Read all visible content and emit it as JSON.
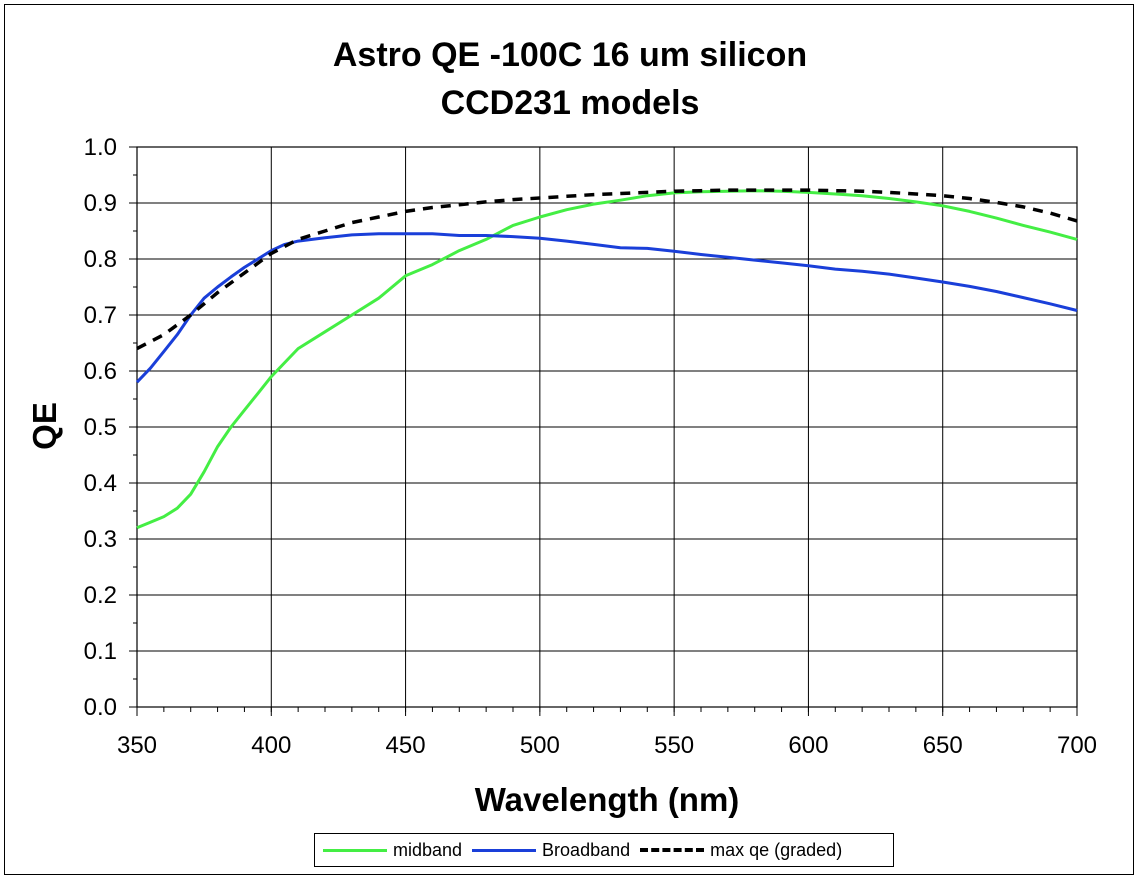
{
  "chart_data": {
    "type": "line",
    "title": [
      "Astro QE -100C 16 um silicon",
      "CCD231 models"
    ],
    "xlabel": "Wavelength (nm)",
    "ylabel": "QE",
    "xlim": [
      350,
      700
    ],
    "ylim": [
      0,
      1.0
    ],
    "x_ticks": [
      350,
      400,
      450,
      500,
      550,
      600,
      650,
      700
    ],
    "x_tick_labels": [
      "350",
      "400",
      "450",
      "500",
      "550",
      "600",
      "650",
      "700"
    ],
    "y_ticks": [
      0,
      0.1,
      0.2,
      0.3,
      0.4,
      0.5,
      0.6,
      0.7,
      0.8,
      0.9,
      1.0
    ],
    "y_tick_labels": [
      "0.0",
      "0.1",
      "0.2",
      "0.3",
      "0.4",
      "0.5",
      "0.6",
      "0.7",
      "0.8",
      "0.9",
      "1.0"
    ],
    "grid": true,
    "legend_position": "bottom",
    "series": [
      {
        "name": "midband",
        "color": "#44ee44",
        "style": "solid",
        "x": [
          350,
          355,
          360,
          365,
          370,
          375,
          380,
          385,
          390,
          395,
          400,
          405,
          410,
          420,
          430,
          440,
          450,
          460,
          470,
          480,
          490,
          500,
          510,
          520,
          530,
          540,
          550,
          560,
          570,
          580,
          590,
          600,
          610,
          620,
          630,
          640,
          650,
          660,
          670,
          680,
          690,
          700
        ],
        "y": [
          0.32,
          0.33,
          0.34,
          0.355,
          0.38,
          0.42,
          0.465,
          0.5,
          0.53,
          0.56,
          0.59,
          0.615,
          0.64,
          0.67,
          0.7,
          0.73,
          0.77,
          0.79,
          0.815,
          0.835,
          0.86,
          0.875,
          0.888,
          0.898,
          0.905,
          0.913,
          0.918,
          0.92,
          0.921,
          0.922,
          0.921,
          0.919,
          0.916,
          0.913,
          0.908,
          0.902,
          0.895,
          0.885,
          0.873,
          0.86,
          0.848,
          0.835
        ]
      },
      {
        "name": "Broadband",
        "color": "#1a3fd9",
        "style": "solid",
        "x": [
          350,
          355,
          360,
          365,
          370,
          375,
          380,
          385,
          390,
          395,
          400,
          405,
          410,
          420,
          430,
          440,
          450,
          460,
          470,
          480,
          490,
          500,
          510,
          520,
          530,
          540,
          550,
          560,
          570,
          580,
          590,
          600,
          610,
          620,
          630,
          640,
          650,
          660,
          670,
          680,
          690,
          700
        ],
        "y": [
          0.58,
          0.605,
          0.635,
          0.665,
          0.7,
          0.73,
          0.75,
          0.768,
          0.785,
          0.8,
          0.815,
          0.826,
          0.832,
          0.838,
          0.843,
          0.845,
          0.845,
          0.845,
          0.842,
          0.842,
          0.84,
          0.837,
          0.832,
          0.826,
          0.82,
          0.819,
          0.814,
          0.808,
          0.803,
          0.798,
          0.793,
          0.788,
          0.782,
          0.778,
          0.773,
          0.766,
          0.759,
          0.751,
          0.742,
          0.731,
          0.72,
          0.708
        ]
      },
      {
        "name": "max qe (graded)",
        "color": "#000000",
        "style": "dashed",
        "x": [
          350,
          360,
          370,
          380,
          390,
          400,
          410,
          420,
          430,
          440,
          450,
          460,
          470,
          480,
          490,
          500,
          510,
          520,
          530,
          540,
          550,
          560,
          570,
          580,
          590,
          600,
          610,
          620,
          630,
          640,
          650,
          660,
          670,
          680,
          690,
          700
        ],
        "y": [
          0.64,
          0.665,
          0.7,
          0.74,
          0.775,
          0.81,
          0.835,
          0.85,
          0.865,
          0.875,
          0.885,
          0.892,
          0.897,
          0.902,
          0.906,
          0.909,
          0.912,
          0.915,
          0.917,
          0.919,
          0.921,
          0.922,
          0.923,
          0.923,
          0.923,
          0.923,
          0.922,
          0.921,
          0.919,
          0.916,
          0.913,
          0.908,
          0.901,
          0.893,
          0.882,
          0.868
        ]
      }
    ]
  }
}
